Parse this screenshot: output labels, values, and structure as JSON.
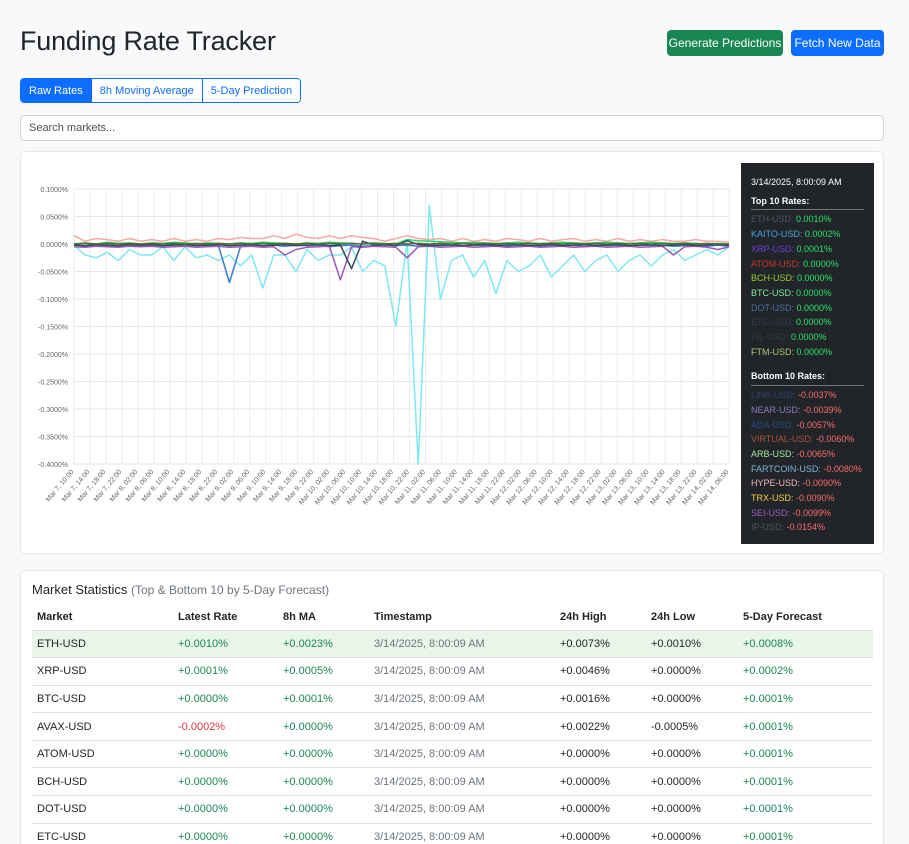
{
  "header": {
    "title": "Funding Rate Tracker",
    "generate_label": "Generate Predictions",
    "fetch_label": "Fetch New Data"
  },
  "tabs": [
    {
      "label": "Raw Rates",
      "active": true
    },
    {
      "label": "8h Moving Average",
      "active": false
    },
    {
      "label": "5-Day Prediction",
      "active": false
    }
  ],
  "search": {
    "placeholder": "Search markets..."
  },
  "colors": {
    "accent": "#0d6efd",
    "success": "#198754",
    "danger": "#dc3545"
  },
  "chart_data": {
    "type": "line",
    "ylim": [
      -0.4,
      0.1
    ],
    "yticks": [
      "0.1000%",
      "0.0500%",
      "0.0000%",
      "-0.0500%",
      "-0.1000%",
      "-0.1500%",
      "-0.2000%",
      "-0.2500%",
      "-0.3000%",
      "-0.3500%",
      "-0.4000%"
    ],
    "xticks": [
      "Mar 7, 10:00",
      "Mar 7, 14:00",
      "Mar 7, 18:00",
      "Mar 7, 22:00",
      "Mar 8, 02:00",
      "Mar 8, 06:00",
      "Mar 8, 10:00",
      "Mar 8, 14:00",
      "Mar 8, 18:00",
      "Mar 8, 22:00",
      "Mar 9, 02:00",
      "Mar 9, 06:00",
      "Mar 9, 10:00",
      "Mar 9, 14:00",
      "Mar 9, 18:00",
      "Mar 9, 22:00",
      "Mar 10, 02:00",
      "Mar 10, 06:00",
      "Mar 10, 10:00",
      "Mar 10, 14:00",
      "Mar 10, 18:00",
      "Mar 10, 22:00",
      "Mar 11, 02:00",
      "Mar 11, 06:00",
      "Mar 11, 10:00",
      "Mar 11, 14:00",
      "Mar 11, 18:00",
      "Mar 11, 22:00",
      "Mar 12, 02:00",
      "Mar 12, 06:00",
      "Mar 12, 10:00",
      "Mar 12, 14:00",
      "Mar 12, 18:00",
      "Mar 12, 22:00",
      "Mar 13, 02:00",
      "Mar 13, 06:00",
      "Mar 13, 10:00",
      "Mar 13, 14:00",
      "Mar 13, 18:00",
      "Mar 13, 22:00",
      "Mar 14, 02:00",
      "Mar 14, 06:00"
    ],
    "grid": true,
    "legend": "none",
    "series": [
      {
        "color": "#7ee8f0",
        "values": [
          -0.002,
          -0.02,
          -0.025,
          -0.015,
          -0.03,
          -0.01,
          -0.02,
          -0.02,
          -0.005,
          -0.03,
          -0.005,
          -0.025,
          -0.02,
          -0.03,
          -0.02,
          -0.04,
          -0.02,
          -0.08,
          -0.02,
          -0.02,
          -0.05,
          -0.01,
          -0.03,
          -0.02,
          -0.02,
          -0.005,
          -0.05,
          -0.03,
          -0.04,
          -0.15,
          0.005,
          -0.4,
          0.07,
          -0.1,
          -0.03,
          -0.02,
          -0.06,
          -0.03,
          -0.09,
          -0.03,
          -0.05,
          -0.04,
          -0.02,
          -0.06,
          -0.04,
          -0.02,
          -0.05,
          -0.03,
          -0.02,
          -0.05,
          -0.03,
          -0.02,
          -0.04,
          -0.02,
          -0.01,
          -0.03,
          -0.02,
          -0.01,
          -0.02,
          -0.005
        ]
      },
      {
        "color": "#f4a9a3",
        "values": [
          0.015,
          0.005,
          0.01,
          0.008,
          0.005,
          0.01,
          0.005,
          0.008,
          0.005,
          0.01,
          0.005,
          0.008,
          0.005,
          0.01,
          0.008,
          0.012,
          0.01,
          0.01,
          0.015,
          0.01,
          0.018,
          0.012,
          0.01,
          0.015,
          0.01,
          0.015,
          0.012,
          0.01,
          0.005,
          0.01,
          0.015,
          0.01,
          0.008,
          0.01,
          0.005,
          0.01,
          0.005,
          0.008,
          0.005,
          0.01,
          0.008,
          0.005,
          0.01,
          0.005,
          0.008,
          0.01,
          0.005,
          0.008,
          0.005,
          0.01,
          0.005,
          0.008,
          0.005,
          0.008,
          0.005,
          0.005,
          0.008,
          0.005,
          0.005,
          0.003
        ]
      },
      {
        "color": "#3a7bd5",
        "values": [
          0.0,
          -0.005,
          -0.002,
          -0.003,
          -0.005,
          -0.002,
          -0.004,
          -0.002,
          -0.003,
          -0.001,
          -0.004,
          -0.002,
          -0.003,
          -0.002,
          -0.07,
          -0.005,
          -0.002,
          -0.003,
          -0.002,
          -0.004,
          -0.002,
          -0.003,
          -0.002,
          -0.005,
          -0.003,
          -0.002,
          -0.004,
          -0.003,
          -0.002,
          -0.003,
          -0.002,
          -0.004,
          -0.002,
          -0.003,
          -0.002,
          -0.004,
          -0.002,
          -0.003,
          -0.002,
          -0.004,
          -0.003,
          -0.002,
          -0.004,
          -0.002,
          -0.003,
          -0.002,
          -0.004,
          -0.002,
          -0.003,
          -0.002,
          -0.004,
          -0.002,
          -0.003,
          -0.002,
          -0.004,
          -0.003,
          -0.002,
          -0.004,
          -0.002,
          -0.004
        ]
      },
      {
        "color": "#9b59b6",
        "values": [
          -0.005,
          -0.006,
          -0.004,
          -0.005,
          -0.006,
          -0.004,
          -0.005,
          -0.004,
          -0.006,
          -0.005,
          -0.004,
          -0.006,
          -0.005,
          -0.004,
          -0.006,
          -0.005,
          -0.004,
          -0.006,
          -0.005,
          -0.02,
          -0.01,
          -0.006,
          -0.005,
          -0.004,
          -0.065,
          -0.005,
          -0.006,
          -0.004,
          -0.005,
          -0.006,
          -0.025,
          -0.005,
          -0.004,
          -0.006,
          -0.005,
          -0.004,
          -0.006,
          -0.005,
          -0.004,
          -0.006,
          -0.005,
          -0.004,
          -0.006,
          -0.005,
          -0.004,
          -0.006,
          -0.005,
          -0.004,
          -0.006,
          -0.005,
          -0.004,
          -0.006,
          -0.005,
          -0.004,
          -0.02,
          -0.005,
          -0.004,
          -0.006,
          -0.01,
          -0.005
        ]
      },
      {
        "color": "#2ecc71",
        "values": [
          0.0,
          0.002,
          0.0,
          0.003,
          0.001,
          0.002,
          0.0,
          0.002,
          0.001,
          0.003,
          0.002,
          0.0,
          0.002,
          0.001,
          0.0,
          0.002,
          0.001,
          0.003,
          0.002,
          0.001,
          0.0,
          0.002,
          0.001,
          0.003,
          0.002,
          0.001,
          0.0,
          0.002,
          0.001,
          0.0,
          0.008,
          0.006,
          0.005,
          0.004,
          0.003,
          0.002,
          0.003,
          0.002,
          0.001,
          0.002,
          0.003,
          0.002,
          0.001,
          0.002,
          0.003,
          0.002,
          0.001,
          0.002,
          0.003,
          0.002,
          0.001,
          0.002,
          0.003,
          0.002,
          0.001,
          0.002,
          0.001,
          0.0,
          0.001,
          0.0
        ]
      },
      {
        "color": "#34495e",
        "values": [
          -0.002,
          -0.003,
          -0.001,
          -0.002,
          -0.003,
          -0.001,
          -0.002,
          -0.001,
          -0.003,
          -0.002,
          -0.001,
          -0.003,
          -0.002,
          -0.001,
          -0.003,
          -0.002,
          -0.001,
          -0.003,
          -0.002,
          -0.001,
          -0.003,
          -0.002,
          -0.001,
          -0.003,
          -0.002,
          -0.045,
          0.005,
          -0.002,
          -0.001,
          -0.003,
          0.006,
          -0.001,
          -0.003,
          -0.002,
          -0.001,
          -0.003,
          -0.002,
          -0.001,
          -0.003,
          -0.002,
          -0.001,
          -0.003,
          -0.002,
          -0.001,
          -0.003,
          -0.002,
          -0.001,
          -0.003,
          -0.002,
          -0.001,
          -0.003,
          -0.002,
          -0.001,
          -0.003,
          -0.002,
          -0.001,
          -0.003,
          -0.002,
          -0.001,
          -0.002
        ]
      },
      {
        "color": "#556b2f",
        "values": [
          0.0,
          0.001,
          0.0,
          0.001,
          0.0,
          0.001,
          0.0,
          0.001,
          0.0,
          0.001,
          0.0,
          0.001,
          0.0,
          0.001,
          0.0,
          0.001,
          0.0,
          0.001,
          0.0,
          0.001,
          0.0,
          0.001,
          0.0,
          0.001,
          0.0,
          0.001,
          0.0,
          0.001,
          0.0,
          0.001,
          0.0,
          0.001,
          0.0,
          0.001,
          0.0,
          0.001,
          0.0,
          0.001,
          0.0,
          0.001,
          0.0,
          0.001,
          0.0,
          0.001,
          0.0,
          0.001,
          0.0,
          0.001,
          0.0,
          0.001,
          0.0,
          0.001,
          0.0,
          0.001,
          0.0,
          0.001,
          0.0,
          0.001,
          0.0,
          0.0
        ]
      }
    ]
  },
  "tooltip": {
    "time": "3/14/2025, 8:00:09 AM",
    "top_heading": "Top 10 Rates:",
    "top": [
      {
        "market": "ETH-USD",
        "value": "0.0010%",
        "color": "#4b5563"
      },
      {
        "market": "KAITO-USD",
        "value": "0.0002%",
        "color": "#4aa3df"
      },
      {
        "market": "XRP-USD",
        "value": "0.0001%",
        "color": "#6a3fd8"
      },
      {
        "market": "ATOM-USD",
        "value": "0.0000%",
        "color": "#c0392b"
      },
      {
        "market": "BCH-USD",
        "value": "0.0000%",
        "color": "#9acd32"
      },
      {
        "market": "BTC-USD",
        "value": "0.0000%",
        "color": "#7ee8a0"
      },
      {
        "market": "DOT-USD",
        "value": "0.0000%",
        "color": "#4a6fa5"
      },
      {
        "market": "ETC-USD",
        "value": "0.0000%",
        "color": "#2c3e50"
      },
      {
        "market": "FIL-USD",
        "value": "0.0000%",
        "color": "#3a3a3a"
      },
      {
        "market": "FTM-USD",
        "value": "0.0000%",
        "color": "#a3c77a"
      }
    ],
    "bottom_heading": "Bottom 10 Rates:",
    "bottom": [
      {
        "market": "LINK-USD",
        "value": "-0.0037%",
        "color": "#2c3e70"
      },
      {
        "market": "NEAR-USD",
        "value": "-0.0039%",
        "color": "#8e7cc3"
      },
      {
        "market": "ADA-USD",
        "value": "-0.0057%",
        "color": "#2a4a8a"
      },
      {
        "market": "VIRTUAL-USD",
        "value": "-0.0060%",
        "color": "#b5523b"
      },
      {
        "market": "ARB-USD",
        "value": "-0.0065%",
        "color": "#a8e6a1"
      },
      {
        "market": "FARTCOIN-USD",
        "value": "-0.0080%",
        "color": "#7fb3d5"
      },
      {
        "market": "HYPE-USD",
        "value": "-0.0090%",
        "color": "#f5b7b1"
      },
      {
        "market": "TRX-USD",
        "value": "-0.0090%",
        "color": "#f4d03f"
      },
      {
        "market": "SEI-USD",
        "value": "-0.0099%",
        "color": "#9b59b6"
      },
      {
        "market": "IP-USD",
        "value": "-0.0154%",
        "color": "#555555"
      }
    ]
  },
  "stats": {
    "title": "Market Statistics",
    "subtitle": "(Top & Bottom 10 by 5-Day Forecast)",
    "columns": [
      "Market",
      "Latest Rate",
      "8h MA",
      "Timestamp",
      "24h High",
      "24h Low",
      "5-Day Forecast"
    ],
    "rows": [
      {
        "market": "ETH-USD",
        "latest": "+0.0010%",
        "ma": "+0.0023%",
        "timestamp": "3/14/2025, 8:00:09 AM",
        "high": "+0.0073%",
        "low": "+0.0010%",
        "forecast": "+0.0008%",
        "highlight": true
      },
      {
        "market": "XRP-USD",
        "latest": "+0.0001%",
        "ma": "+0.0005%",
        "timestamp": "3/14/2025, 8:00:09 AM",
        "high": "+0.0046%",
        "low": "+0.0000%",
        "forecast": "+0.0002%",
        "highlight": false
      },
      {
        "market": "BTC-USD",
        "latest": "+0.0000%",
        "ma": "+0.0001%",
        "timestamp": "3/14/2025, 8:00:09 AM",
        "high": "+0.0016%",
        "low": "+0.0000%",
        "forecast": "+0.0001%",
        "highlight": false
      },
      {
        "market": "AVAX-USD",
        "latest": "-0.0002%",
        "ma": "+0.0000%",
        "timestamp": "3/14/2025, 8:00:09 AM",
        "high": "+0.0022%",
        "low": "-0.0005%",
        "forecast": "+0.0001%",
        "highlight": false
      },
      {
        "market": "ATOM-USD",
        "latest": "+0.0000%",
        "ma": "+0.0000%",
        "timestamp": "3/14/2025, 8:00:09 AM",
        "high": "+0.0000%",
        "low": "+0.0000%",
        "forecast": "+0.0001%",
        "highlight": false
      },
      {
        "market": "BCH-USD",
        "latest": "+0.0000%",
        "ma": "+0.0000%",
        "timestamp": "3/14/2025, 8:00:09 AM",
        "high": "+0.0000%",
        "low": "+0.0000%",
        "forecast": "+0.0001%",
        "highlight": false
      },
      {
        "market": "DOT-USD",
        "latest": "+0.0000%",
        "ma": "+0.0000%",
        "timestamp": "3/14/2025, 8:00:09 AM",
        "high": "+0.0000%",
        "low": "+0.0000%",
        "forecast": "+0.0001%",
        "highlight": false
      },
      {
        "market": "ETC-USD",
        "latest": "+0.0000%",
        "ma": "+0.0000%",
        "timestamp": "3/14/2025, 8:00:09 AM",
        "high": "+0.0000%",
        "low": "+0.0000%",
        "forecast": "+0.0001%",
        "highlight": false
      }
    ]
  }
}
